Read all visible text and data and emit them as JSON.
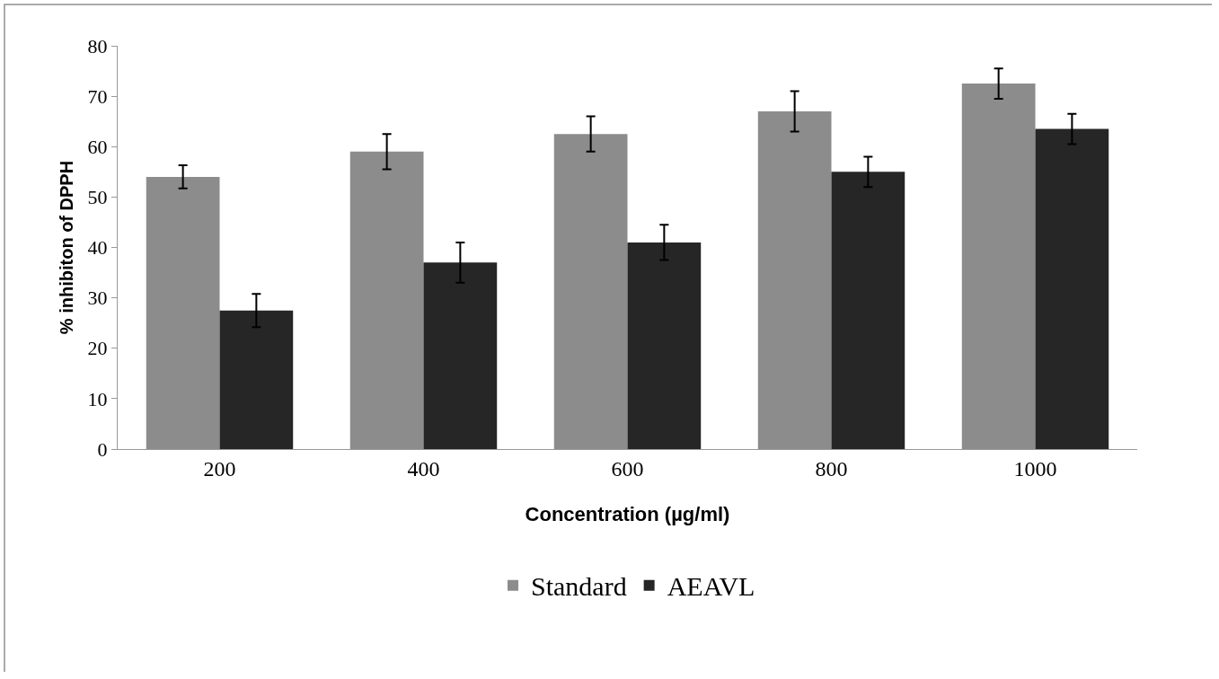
{
  "chart_data": {
    "type": "bar",
    "xlabel": "Concentration (µg/ml)",
    "ylabel": "% inhibiton of DPPH",
    "categories": [
      "200",
      "400",
      "600",
      "800",
      "1000"
    ],
    "series": [
      {
        "name": "Standard",
        "color": "#8c8c8c",
        "values": [
          54,
          59,
          62.5,
          67,
          72.5
        ],
        "errors": [
          2.3,
          3.5,
          3.5,
          4,
          3
        ]
      },
      {
        "name": "AEAVL",
        "color": "#262626",
        "values": [
          27.5,
          37,
          41,
          55,
          63.5
        ],
        "errors": [
          3.3,
          4,
          3.5,
          3,
          3
        ]
      }
    ],
    "ylim": [
      0,
      80
    ],
    "yticks": [
      0,
      10,
      20,
      30,
      40,
      50,
      60,
      70,
      80
    ],
    "grid": false,
    "legend": "bottom"
  }
}
